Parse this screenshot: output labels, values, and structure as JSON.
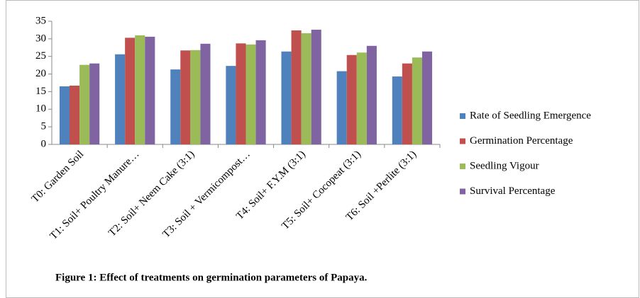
{
  "chart_data": {
    "type": "bar",
    "caption": "Figure 1: Effect of treatments on germination parameters of Papaya.",
    "categories": [
      "T0: Garden Soil",
      "T1: Soil+ Poultry Manure…",
      "T2: Soil+ Neem Cake (3:1)",
      "T3: Soil + Vermicompost…",
      "T4: Soil+ F.Y.M (3:1)",
      "T5: Soil+ Cocopeat (3:1)",
      "T6: Soil +Perlite (3:1)"
    ],
    "series": [
      {
        "name": "Rate of Seedling Emergence",
        "color": "#4f81bd",
        "values": [
          16.5,
          25.6,
          21.3,
          22.3,
          26.4,
          20.8,
          19.3
        ]
      },
      {
        "name": "Germination Percentage",
        "color": "#c0504d",
        "values": [
          16.7,
          30.3,
          26.7,
          28.7,
          32.4,
          25.4,
          23.0
        ]
      },
      {
        "name": "Seedling Vigour",
        "color": "#9bbb59",
        "values": [
          22.6,
          31.0,
          26.8,
          28.4,
          31.6,
          26.1,
          24.7
        ]
      },
      {
        "name": "Survival Percentage",
        "color": "#8064a2",
        "values": [
          23.0,
          30.6,
          28.6,
          29.6,
          32.6,
          28.0,
          26.4
        ]
      }
    ],
    "ylim": [
      0,
      35
    ],
    "yticks": [
      0,
      5,
      10,
      15,
      20,
      25,
      30,
      35
    ],
    "legend": "right"
  }
}
